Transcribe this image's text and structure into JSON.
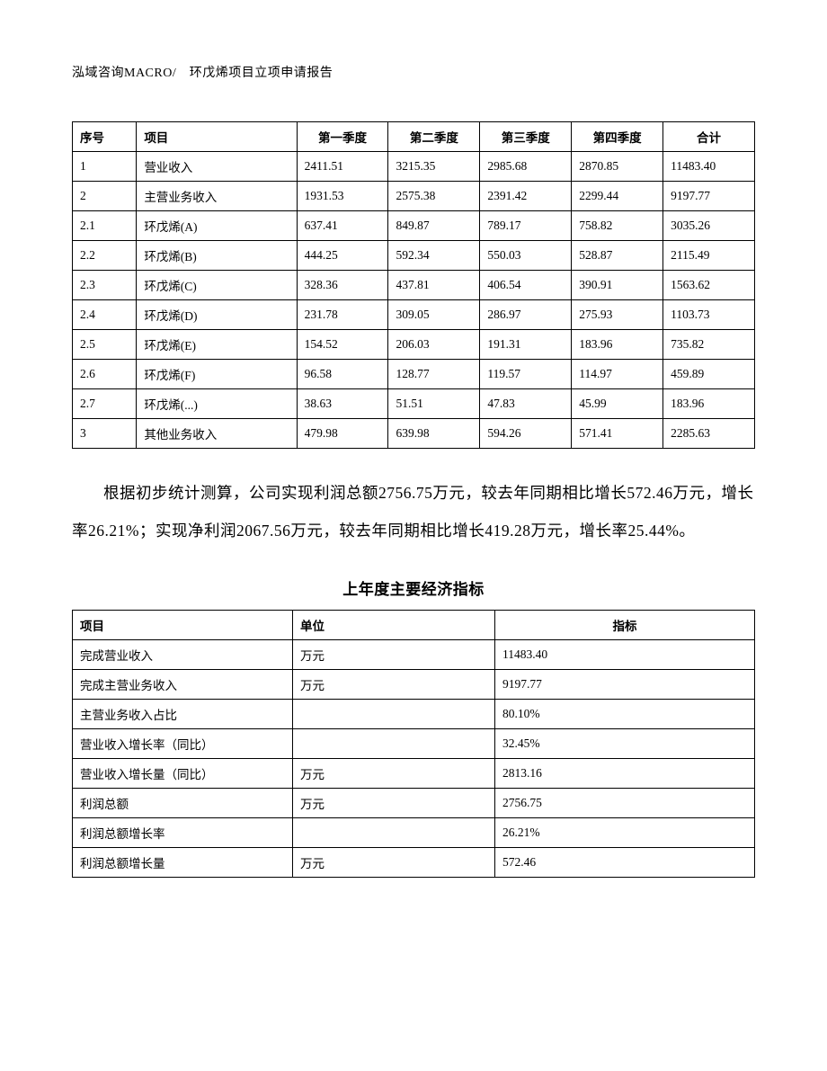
{
  "header": "泓域咨询MACRO/　环戊烯项目立项申请报告",
  "table1": {
    "type": "table",
    "columns": [
      "序号",
      "项目",
      "第一季度",
      "第二季度",
      "第三季度",
      "第四季度",
      "合计"
    ],
    "rows": [
      [
        "1",
        "营业收入",
        "2411.51",
        "3215.35",
        "2985.68",
        "2870.85",
        "11483.40"
      ],
      [
        "2",
        "主营业务收入",
        "1931.53",
        "2575.38",
        "2391.42",
        "2299.44",
        "9197.77"
      ],
      [
        "2.1",
        "环戊烯(A)",
        "637.41",
        "849.87",
        "789.17",
        "758.82",
        "3035.26"
      ],
      [
        "2.2",
        "环戊烯(B)",
        "444.25",
        "592.34",
        "550.03",
        "528.87",
        "2115.49"
      ],
      [
        "2.3",
        "环戊烯(C)",
        "328.36",
        "437.81",
        "406.54",
        "390.91",
        "1563.62"
      ],
      [
        "2.4",
        "环戊烯(D)",
        "231.78",
        "309.05",
        "286.97",
        "275.93",
        "1103.73"
      ],
      [
        "2.5",
        "环戊烯(E)",
        "154.52",
        "206.03",
        "191.31",
        "183.96",
        "735.82"
      ],
      [
        "2.6",
        "环戊烯(F)",
        "96.58",
        "128.77",
        "119.57",
        "114.97",
        "459.89"
      ],
      [
        "2.7",
        "环戊烯(...)",
        "38.63",
        "51.51",
        "47.83",
        "45.99",
        "183.96"
      ],
      [
        "3",
        "其他业务收入",
        "479.98",
        "639.98",
        "594.26",
        "571.41",
        "2285.63"
      ]
    ]
  },
  "paragraph": "根据初步统计测算，公司实现利润总额2756.75万元，较去年同期相比增长572.46万元，增长率26.21%；实现净利润2067.56万元，较去年同期相比增长419.28万元，增长率25.44%。",
  "subtitle": "上年度主要经济指标",
  "table2": {
    "type": "table",
    "columns": [
      "项目",
      "单位",
      "指标"
    ],
    "rows": [
      [
        "完成营业收入",
        "万元",
        "11483.40"
      ],
      [
        "完成主营业务收入",
        "万元",
        "9197.77"
      ],
      [
        "主营业务收入占比",
        "",
        "80.10%"
      ],
      [
        "营业收入增长率（同比）",
        "",
        "32.45%"
      ],
      [
        "营业收入增长量（同比）",
        "万元",
        "2813.16"
      ],
      [
        "利润总额",
        "万元",
        "2756.75"
      ],
      [
        "利润总额增长率",
        "",
        "26.21%"
      ],
      [
        "利润总额增长量",
        "万元",
        "572.46"
      ]
    ]
  }
}
